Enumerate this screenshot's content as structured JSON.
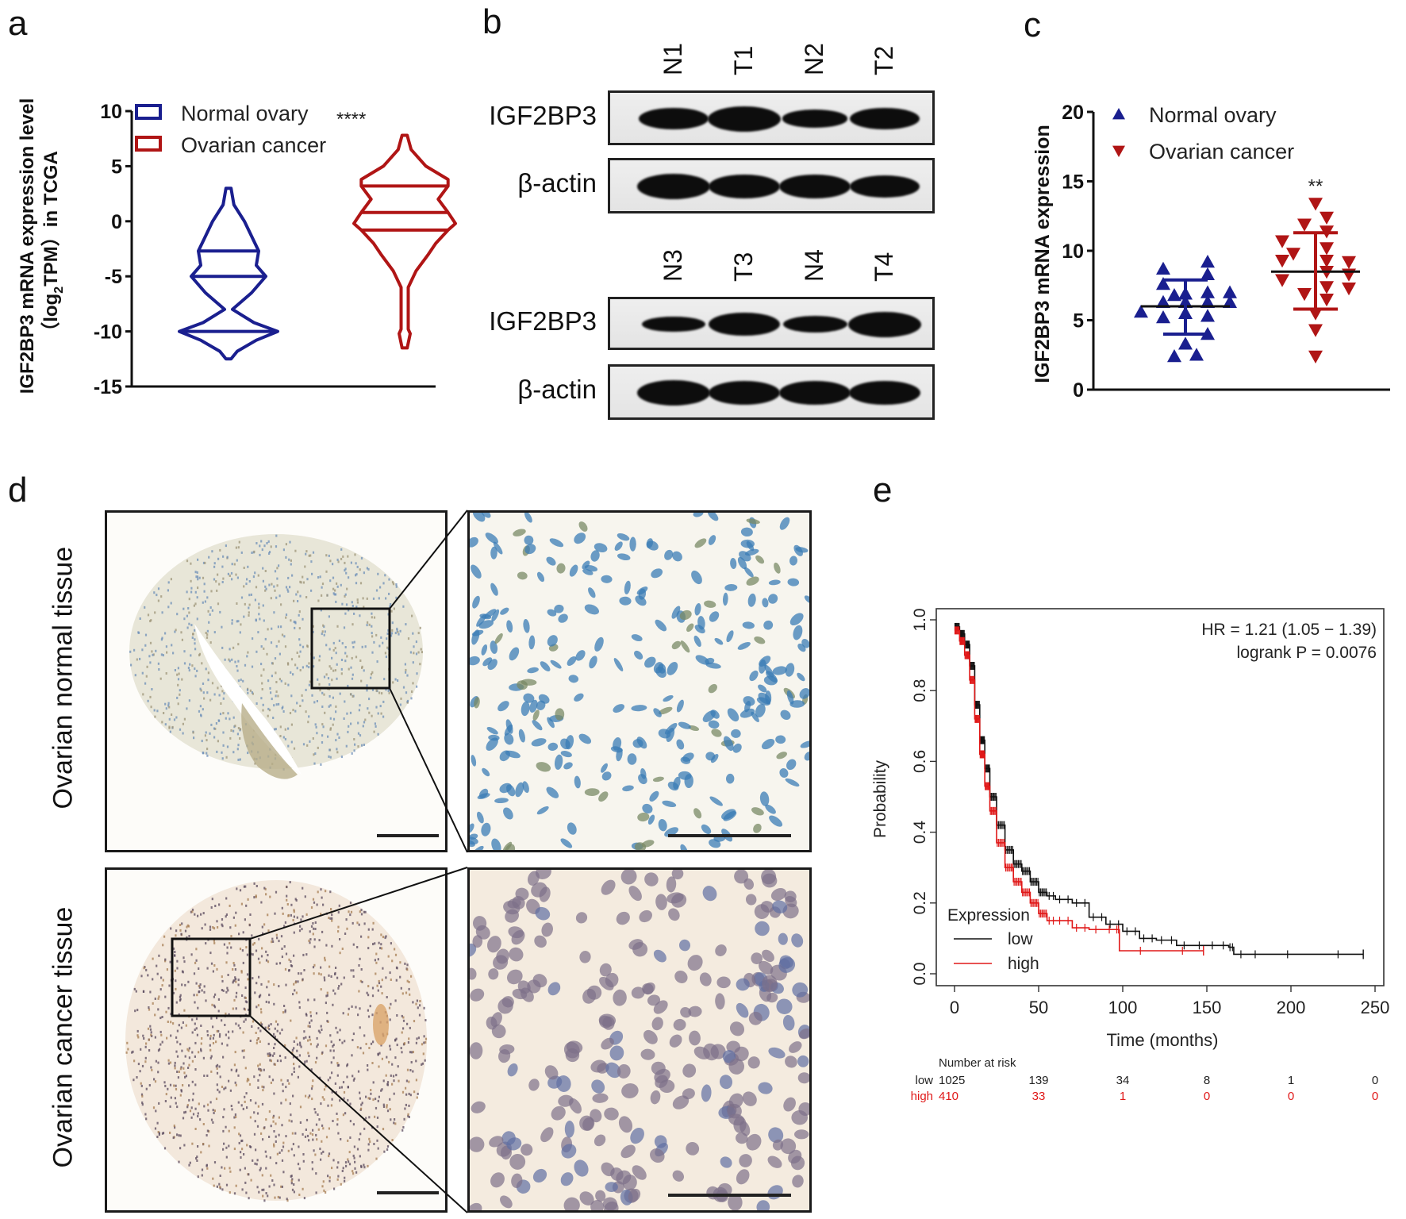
{
  "figure": {
    "panel_labels": {
      "a": "a",
      "b": "b",
      "c": "c",
      "d": "d",
      "e": "e"
    }
  },
  "colors": {
    "normal_blue": "#1a1f8f",
    "cancer_red": "#b01515",
    "km_low": "#111111",
    "km_high": "#e01818"
  },
  "panel_a": {
    "ylabel_line1": "IGF2BP3 mRNA expression level",
    "ylabel_line2_prefix": "（log",
    "ylabel_line2_sub": "2",
    "ylabel_line2_suffix": "TPM）in TCGA",
    "significance": "****"
  },
  "panel_b": {
    "blot_sets": [
      {
        "lanes": [
          "N1",
          "T1",
          "N2",
          "T2"
        ],
        "rows": [
          {
            "label": "IGF2BP3",
            "band_intensity": [
              0.8,
              1.0,
              0.55,
              0.8
            ]
          },
          {
            "label": "β-actin",
            "band_intensity": [
              1.0,
              0.95,
              0.95,
              0.85
            ]
          }
        ]
      },
      {
        "lanes": [
          "N3",
          "T3",
          "N4",
          "T4"
        ],
        "rows": [
          {
            "label": "IGF2BP3",
            "band_intensity": [
              0.45,
              0.9,
              0.5,
              1.0
            ]
          },
          {
            "label": "β-actin",
            "band_intensity": [
              1.0,
              0.9,
              0.95,
              0.95
            ]
          }
        ]
      }
    ]
  },
  "panel_d": {
    "rows": [
      {
        "label": "Ovarian normal tissue",
        "stain": "normal"
      },
      {
        "label": "Ovarian cancer tissue",
        "stain": "cancer"
      }
    ]
  },
  "chart_data": [
    {
      "id": "panel-a",
      "type": "violin",
      "title": "",
      "xlabel": "",
      "ylabel": "IGF2BP3 mRNA expression level (log2TPM) in TCGA",
      "ylim": [
        -15,
        10
      ],
      "yticks": [
        10,
        5,
        0,
        -5,
        -10,
        -15
      ],
      "ytick_labels": [
        "10",
        "5",
        "0",
        "-5",
        "-10",
        "-15"
      ],
      "legend": [
        "Normal ovary",
        "Ovarian cancer"
      ],
      "legend_position": "top-left",
      "annotation": "****",
      "series": [
        {
          "name": "Normal ovary",
          "min": -12.5,
          "max": 3.0,
          "quartiles": [
            -10.0,
            -5.0,
            -2.7
          ],
          "density_profile": [
            [
              3.0,
              0.02
            ],
            [
              1.5,
              0.08
            ],
            [
              0,
              0.3
            ],
            [
              -2.7,
              0.6
            ],
            [
              -4,
              0.55
            ],
            [
              -5,
              0.75
            ],
            [
              -6.5,
              0.45
            ],
            [
              -8,
              0.05
            ],
            [
              -9.2,
              0.5
            ],
            [
              -10,
              1.0
            ],
            [
              -10.8,
              0.55
            ],
            [
              -11.8,
              0.15
            ],
            [
              -12.5,
              0.02
            ]
          ]
        },
        {
          "name": "Ovarian cancer",
          "min": -11.5,
          "max": 7.8,
          "quartiles": [
            -0.8,
            0.8,
            3.2
          ],
          "density_profile": [
            [
              7.8,
              0.02
            ],
            [
              6.5,
              0.1
            ],
            [
              5,
              0.4
            ],
            [
              3.8,
              0.85
            ],
            [
              3.2,
              0.85
            ],
            [
              2,
              0.65
            ],
            [
              0.8,
              0.85
            ],
            [
              -0.2,
              1.0
            ],
            [
              -0.8,
              0.85
            ],
            [
              -2,
              0.6
            ],
            [
              -3,
              0.45
            ],
            [
              -4.5,
              0.2
            ],
            [
              -6,
              0.04
            ],
            [
              -9.8,
              0.04
            ],
            [
              -10.2,
              0.08
            ],
            [
              -11.5,
              0.02
            ]
          ]
        }
      ]
    },
    {
      "id": "panel-c",
      "type": "scatter",
      "title": "",
      "xlabel": "",
      "ylabel": "IGF2BP3 mRNA expression",
      "ylim": [
        0,
        20
      ],
      "yticks": [
        0,
        5,
        10,
        15,
        20
      ],
      "ytick_labels": [
        "0",
        "5",
        "10",
        "15",
        "20"
      ],
      "legend": [
        "Normal ovary",
        "Ovarian cancer"
      ],
      "legend_position": "top-left",
      "annotation": "**",
      "series": [
        {
          "name": "Normal ovary",
          "marker": "triangle-up",
          "values": [
            8.7,
            7.6,
            6.8,
            6.3,
            5.6,
            5.2,
            6.9,
            6.3,
            5.5,
            9.2,
            8.3,
            7.0,
            6.3,
            5.3,
            4.0,
            3.3,
            2.4,
            2.5,
            7.0,
            6.3
          ],
          "mean": 6.0,
          "sd_low": 4.0,
          "sd_high": 7.9
        },
        {
          "name": "Ovarian cancer",
          "marker": "triangle-down",
          "values": [
            13.4,
            12.4,
            11.9,
            11.4,
            10.7,
            10.2,
            9.8,
            9.3,
            9.3,
            9.2,
            8.5,
            8.3,
            7.9,
            7.4,
            7.3,
            6.9,
            6.5,
            5.5,
            4.3,
            2.4
          ],
          "mean": 8.5,
          "sd_low": 5.8,
          "sd_high": 11.3
        }
      ]
    },
    {
      "id": "panel-e",
      "type": "line",
      "subtype": "kaplan-meier",
      "title": "",
      "xlabel": "Time (months)",
      "ylabel": "Probability",
      "xlim": [
        0,
        250
      ],
      "ylim": [
        0,
        1
      ],
      "xticks": [
        0,
        50,
        100,
        150,
        200,
        250
      ],
      "yticks": [
        0.0,
        0.2,
        0.4,
        0.6,
        0.8,
        1.0
      ],
      "xtick_labels": [
        "0",
        "50",
        "100",
        "150",
        "200",
        "250"
      ],
      "ytick_labels": [
        "0.0",
        "0.2",
        "0.4",
        "0.6",
        "0.8",
        "1.0"
      ],
      "annotations": [
        "HR = 1.21 (1.05 − 1.39)",
        "logrank P = 0.0076"
      ],
      "legend_title": "Expression",
      "legend": [
        "low",
        "high"
      ],
      "legend_position": "bottom-left",
      "series": [
        {
          "name": "low",
          "x": [
            0,
            3,
            6,
            9,
            12,
            15,
            18,
            21,
            25,
            30,
            35,
            40,
            45,
            50,
            55,
            60,
            70,
            80,
            90,
            100,
            110,
            120,
            132,
            150,
            163,
            166,
            183,
            243
          ],
          "y": [
            0.98,
            0.96,
            0.93,
            0.87,
            0.76,
            0.66,
            0.58,
            0.5,
            0.42,
            0.35,
            0.31,
            0.29,
            0.26,
            0.23,
            0.22,
            0.21,
            0.2,
            0.16,
            0.14,
            0.12,
            0.1,
            0.095,
            0.08,
            0.08,
            0.075,
            0.055,
            0.055,
            0.055
          ]
        },
        {
          "name": "high",
          "x": [
            0,
            3,
            6,
            9,
            12,
            15,
            18,
            21,
            25,
            30,
            35,
            40,
            45,
            50,
            55,
            60,
            70,
            80,
            96,
            98,
            148
          ],
          "y": [
            0.97,
            0.94,
            0.9,
            0.83,
            0.72,
            0.62,
            0.53,
            0.46,
            0.37,
            0.3,
            0.26,
            0.23,
            0.2,
            0.17,
            0.15,
            0.15,
            0.13,
            0.125,
            0.125,
            0.065,
            0.065
          ]
        }
      ],
      "risk_table": {
        "title": "Number at risk",
        "times": [
          0,
          50,
          100,
          150,
          200,
          250
        ],
        "rows": [
          {
            "label": "low",
            "values": [
              "1025",
              "139",
              "34",
              "8",
              "1",
              "0"
            ]
          },
          {
            "label": "high",
            "values": [
              "410",
              "33",
              "1",
              "0",
              "0",
              "0"
            ]
          }
        ]
      }
    }
  ]
}
